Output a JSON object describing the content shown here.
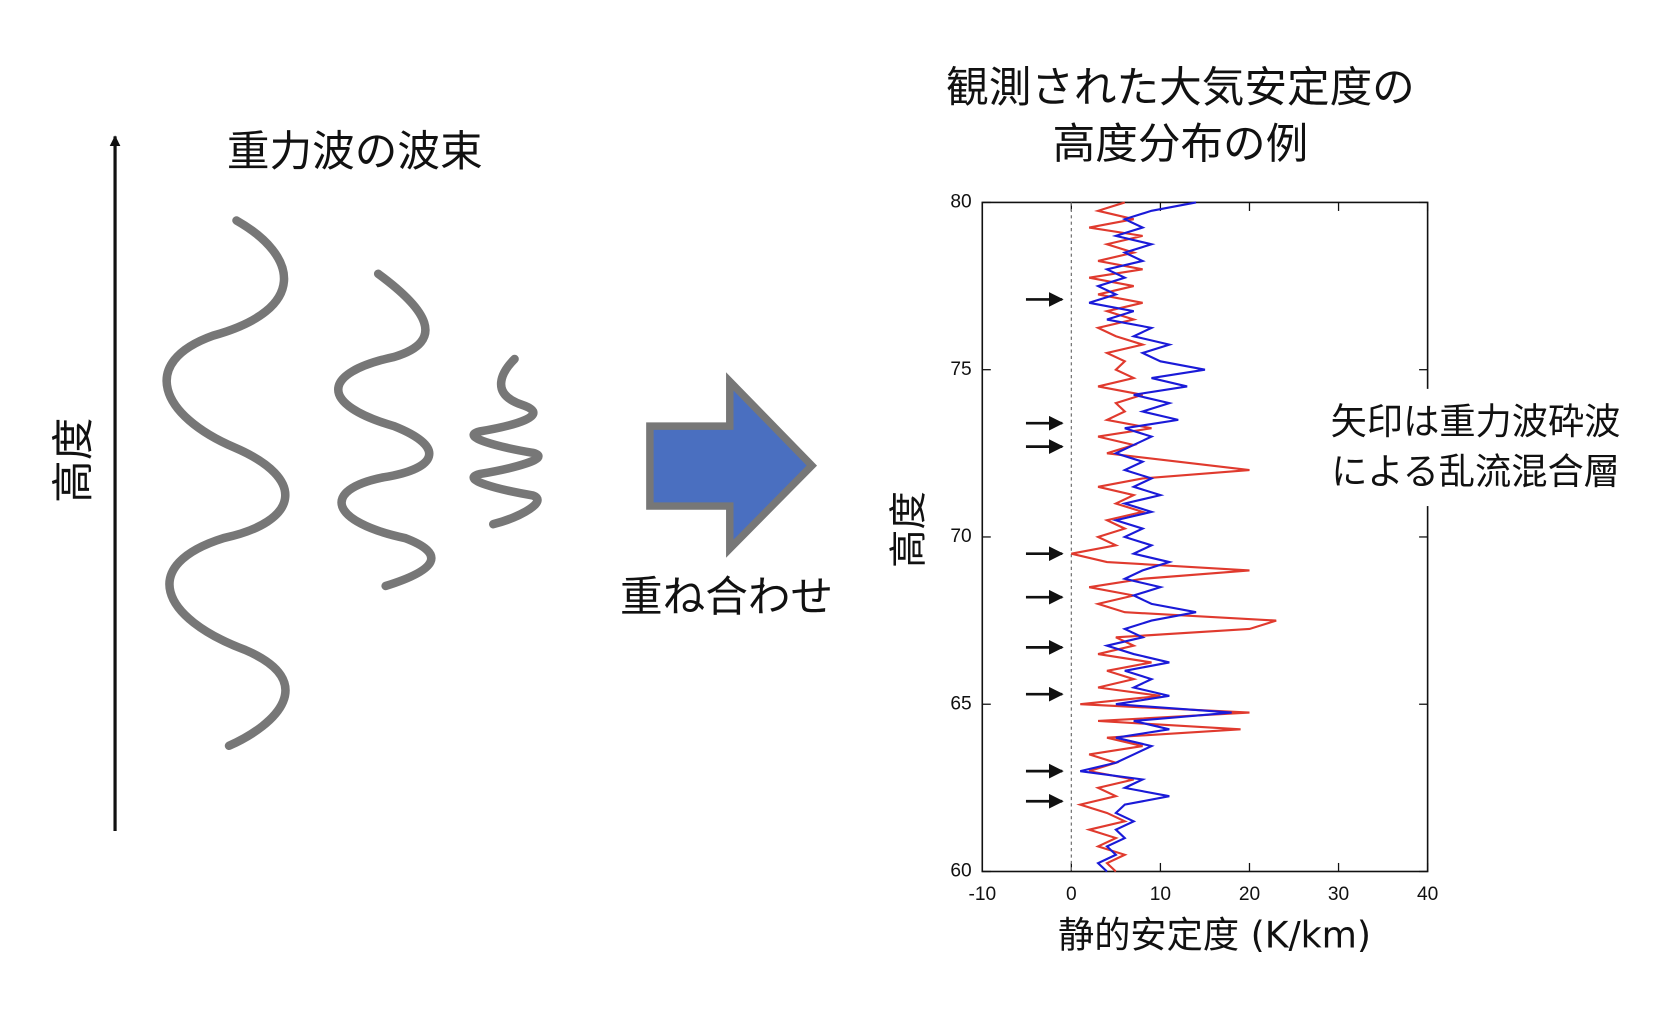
{
  "diagram": {
    "packet_title": "重力波の波束",
    "height_label": "高度",
    "arrow_label": "重ね合わせ"
  },
  "annotation": [
    "矢印は重力波砕波",
    "による乱流混合層"
  ],
  "chart_data": {
    "type": "line",
    "title": [
      "観測された大気安定度の",
      "高度分布の例"
    ],
    "xlabel": "静的安定度 (K/km)",
    "ylabel": "高度",
    "xlim": [
      -10,
      40
    ],
    "xticks": [
      -10,
      0,
      10,
      20,
      30,
      40
    ],
    "ylim": [
      60,
      80
    ],
    "yticks": [
      60,
      65,
      70,
      75,
      80
    ],
    "altitude": [
      60,
      60.25,
      60.5,
      60.75,
      61,
      61.25,
      61.5,
      61.75,
      62,
      62.25,
      62.5,
      62.75,
      63,
      63.25,
      63.5,
      63.75,
      64,
      64.25,
      64.5,
      64.75,
      65,
      65.25,
      65.5,
      65.75,
      66,
      66.25,
      66.5,
      66.75,
      67,
      67.25,
      67.5,
      67.75,
      68,
      68.25,
      68.5,
      68.75,
      69,
      69.25,
      69.5,
      69.75,
      70,
      70.25,
      70.5,
      70.75,
      71,
      71.25,
      71.5,
      71.75,
      72,
      72.25,
      72.5,
      72.75,
      73,
      73.25,
      73.5,
      73.75,
      74,
      74.25,
      74.5,
      74.75,
      75,
      75.25,
      75.5,
      75.75,
      76,
      76.25,
      76.5,
      76.75,
      77,
      77.25,
      77.5,
      77.75,
      78,
      78.25,
      78.5,
      78.75,
      79,
      79.25,
      79.5,
      79.75,
      80
    ],
    "series": [
      {
        "color": "#e03a2e",
        "values": [
          5,
          4,
          6,
          3,
          5,
          2,
          6,
          4,
          1,
          5,
          3,
          7,
          2,
          5,
          2,
          8,
          4,
          19,
          3,
          20,
          1,
          10,
          3,
          7,
          4,
          9,
          3,
          7,
          5,
          20,
          23,
          6,
          3,
          7,
          2,
          8,
          20,
          4,
          0,
          5,
          3,
          6,
          4,
          8,
          5,
          7,
          3,
          8,
          20,
          12,
          4,
          7,
          3,
          9,
          4,
          6,
          5,
          8,
          3,
          7,
          5,
          6,
          4,
          8,
          5,
          3,
          7,
          4,
          8,
          3,
          7,
          2,
          8,
          3,
          7,
          4,
          8,
          2,
          7,
          3,
          6
        ]
      },
      {
        "color": "#1a1ad8",
        "values": [
          4,
          3,
          5,
          4,
          6,
          5,
          7,
          5,
          6,
          11,
          6,
          8,
          1,
          5,
          7,
          9,
          5,
          11,
          7,
          18,
          5,
          11,
          7,
          9,
          6,
          11,
          7,
          4,
          8,
          6,
          9,
          14,
          9,
          7,
          10,
          6,
          8,
          11,
          7,
          9,
          6,
          8,
          5,
          9,
          6,
          10,
          7,
          9,
          6,
          8,
          5,
          7,
          9,
          6,
          12,
          8,
          11,
          7,
          13,
          9,
          15,
          10,
          8,
          11,
          7,
          9,
          4,
          7,
          2,
          5,
          3,
          6,
          4,
          8,
          6,
          9,
          5,
          8,
          6,
          9,
          14
        ]
      }
    ],
    "arrows": [
      77.1,
      73.4,
      72.7,
      69.5,
      68.2,
      66.7,
      65.3,
      63.0,
      62.1
    ]
  }
}
